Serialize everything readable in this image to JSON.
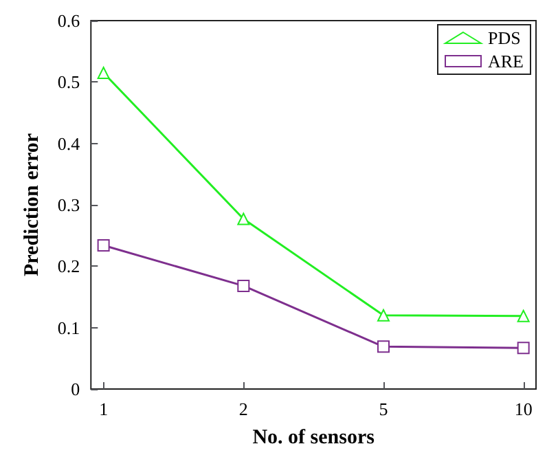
{
  "chart_data": {
    "type": "line",
    "xlabel": "No. of sensors",
    "ylabel": "Prediction error",
    "categories": [
      "1",
      "2",
      "5",
      "10"
    ],
    "series": [
      {
        "name": "PDS",
        "color": "#22ee22",
        "marker": "triangle",
        "values": [
          0.515,
          0.277,
          0.12,
          0.119
        ]
      },
      {
        "name": "ARE",
        "color": "#7e2f8e",
        "marker": "square",
        "values": [
          0.234,
          0.168,
          0.069,
          0.067
        ]
      }
    ],
    "ylim": [
      0,
      0.6
    ],
    "yticks": [
      0,
      0.1,
      0.2,
      0.3,
      0.4,
      0.5,
      0.6
    ],
    "grid": false,
    "legend": "top right",
    "line_style": "solid"
  }
}
